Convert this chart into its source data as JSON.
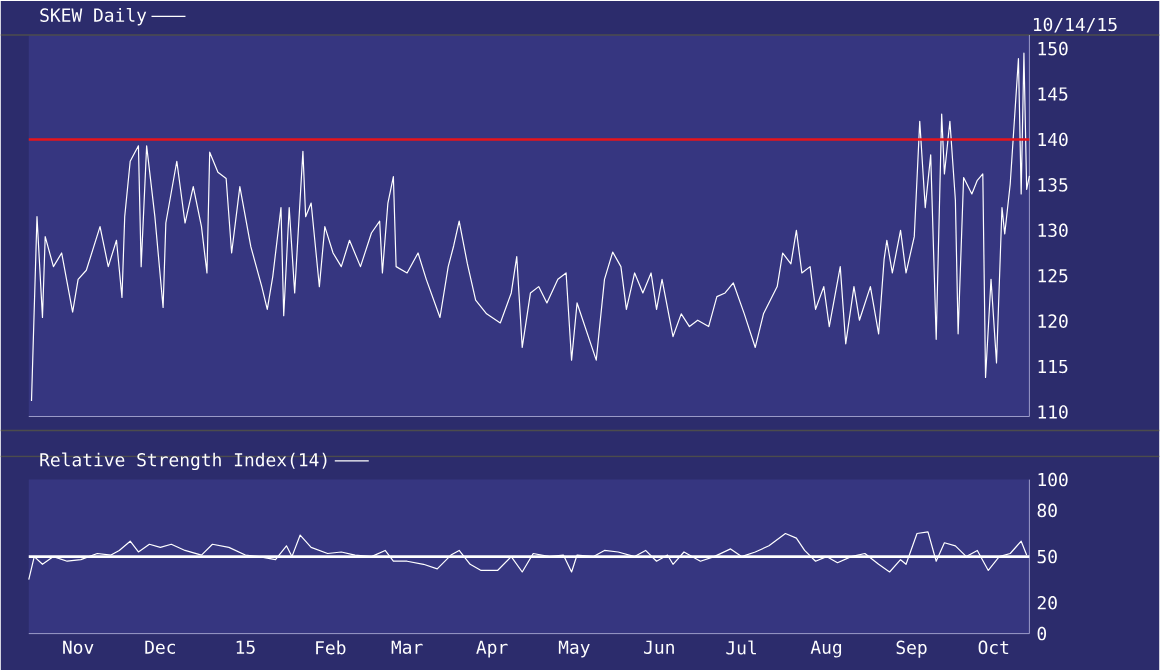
{
  "chart_data": [
    {
      "type": "line",
      "legend": "top left",
      "tick_labels": "y",
      "xlim": [
        "2014-10-14",
        "2015-10-14"
      ],
      "ylim": [
        109.5,
        151.5
      ],
      "yticks": [
        110,
        115,
        120,
        125,
        130,
        135,
        140,
        145,
        150
      ],
      "annotations": [
        "10/14/15"
      ],
      "ref_lines": [
        {
          "axis": "y",
          "value": 140,
          "label": null,
          "color": "#e8141a"
        }
      ],
      "series": [
        {
          "name": "SKEW Daily",
          "color": "#ffffff",
          "x": [
            "2014-10-15",
            "2014-10-17",
            "2014-10-19",
            "2014-10-20",
            "2014-10-23",
            "2014-10-26",
            "2014-10-30",
            "2014-11-01",
            "2014-11-04",
            "2014-11-09",
            "2014-11-12",
            "2014-11-15",
            "2014-11-17",
            "2014-11-18",
            "2014-11-20",
            "2014-11-23",
            "2014-11-24",
            "2014-11-26",
            "2014-11-29",
            "2014-12-02",
            "2014-12-03",
            "2014-12-07",
            "2014-12-10",
            "2014-12-13",
            "2014-12-16",
            "2014-12-18",
            "2014-12-19",
            "2014-12-22",
            "2014-12-25",
            "2014-12-27",
            "2014-12-30",
            "2015-01-03",
            "2015-01-07",
            "2015-01-09",
            "2015-01-11",
            "2015-01-14",
            "2015-01-15",
            "2015-01-17",
            "2015-01-19",
            "2015-01-22",
            "2015-01-23",
            "2015-01-25",
            "2015-01-28",
            "2015-01-30",
            "2015-02-02",
            "2015-02-05",
            "2015-02-08",
            "2015-02-12",
            "2015-02-16",
            "2015-02-19",
            "2015-02-20",
            "2015-02-22",
            "2015-02-24",
            "2015-02-25",
            "2015-03-01",
            "2015-03-05",
            "2015-03-08",
            "2015-03-13",
            "2015-03-16",
            "2015-03-18",
            "2015-03-20",
            "2015-03-23",
            "2015-03-26",
            "2015-03-30",
            "2015-04-04",
            "2015-04-08",
            "2015-04-10",
            "2015-04-12",
            "2015-04-15",
            "2015-04-18",
            "2015-04-21",
            "2015-04-25",
            "2015-04-28",
            "2015-04-30",
            "2015-05-02",
            "2015-05-09",
            "2015-05-12",
            "2015-05-15",
            "2015-05-18",
            "2015-05-20",
            "2015-05-23",
            "2015-05-26",
            "2015-05-29",
            "2015-05-31",
            "2015-06-02",
            "2015-06-06",
            "2015-06-09",
            "2015-06-12",
            "2015-06-15",
            "2015-06-19",
            "2015-06-22",
            "2015-06-25",
            "2015-06-28",
            "2015-07-02",
            "2015-07-06",
            "2015-07-09",
            "2015-07-14",
            "2015-07-16",
            "2015-07-19",
            "2015-07-21",
            "2015-07-23",
            "2015-07-26",
            "2015-07-28",
            "2015-07-31",
            "2015-08-02",
            "2015-08-06",
            "2015-08-08",
            "2015-08-11",
            "2015-08-13",
            "2015-08-17",
            "2015-08-20",
            "2015-08-22",
            "2015-08-23",
            "2015-08-25",
            "2015-08-28",
            "2015-08-30",
            "2015-09-02",
            "2015-09-04",
            "2015-09-06",
            "2015-09-08",
            "2015-09-10",
            "2015-09-12",
            "2015-09-13",
            "2015-09-15",
            "2015-09-17",
            "2015-09-18",
            "2015-09-20",
            "2015-09-23",
            "2015-09-25",
            "2015-09-27",
            "2015-09-28",
            "2015-09-30",
            "2015-10-02",
            "2015-10-04",
            "2015-10-05",
            "2015-10-07",
            "2015-10-10",
            "2015-10-11",
            "2015-10-12",
            "2015-10-13",
            "2015-10-14"
          ],
          "values": [
            111.2,
            131.5,
            120.4,
            129.3,
            126,
            127.5,
            121,
            124.6,
            125.6,
            130.4,
            126,
            128.9,
            122.6,
            131.5,
            137.6,
            139.3,
            126,
            139.3,
            131.5,
            121.5,
            130.8,
            137.6,
            130.8,
            134.8,
            130.4,
            125.3,
            138.6,
            136.4,
            135.7,
            127.5,
            134.8,
            128.2,
            123.8,
            121.3,
            124.9,
            132.5,
            120.6,
            132.5,
            123.1,
            138.7,
            131.5,
            133,
            123.8,
            130.4,
            127.5,
            126,
            128.9,
            126,
            129.7,
            131,
            125.3,
            133,
            135.9,
            126,
            125.3,
            127.5,
            124.6,
            120.4,
            126,
            128.3,
            131,
            126.3,
            122.3,
            120.8,
            119.8,
            123.1,
            127.1,
            117.1,
            123.1,
            123.8,
            122,
            124.6,
            125.3,
            115.7,
            122,
            115.7,
            124.6,
            127.6,
            126,
            121.3,
            125.3,
            123.1,
            125.3,
            121.3,
            124.6,
            118.3,
            120.8,
            119.4,
            120.1,
            119.4,
            122.7,
            123.1,
            124.2,
            120.8,
            117.1,
            120.8,
            123.8,
            127.5,
            126.3,
            130,
            125.3,
            126,
            121.3,
            123.8,
            119.4,
            126,
            117.5,
            123.8,
            120.1,
            123.8,
            118.6,
            126.8,
            128.9,
            125.3,
            130,
            125.3,
            129.3,
            142,
            132.5,
            138.3,
            118,
            142.8,
            136.2,
            142,
            133.3,
            118.6,
            135.8,
            134,
            135.5,
            136.2,
            113.8,
            124.6,
            115.4,
            132.5,
            129.6,
            135.1,
            148.9,
            134,
            149.5,
            134.5,
            136
          ]
        }
      ]
    },
    {
      "type": "line",
      "legend": "top left",
      "xlim": [
        "2014-10-14",
        "2015-10-14"
      ],
      "xticks": [
        {
          "value": "2014-11-01",
          "label": "Nov"
        },
        {
          "value": "2014-12-01",
          "label": "Dec"
        },
        {
          "value": "2015-01-01",
          "label": "15"
        },
        {
          "value": "2015-02-01",
          "label": "Feb"
        },
        {
          "value": "2015-03-01",
          "label": "Mar"
        },
        {
          "value": "2015-04-01",
          "label": "Apr"
        },
        {
          "value": "2015-05-01",
          "label": "May"
        },
        {
          "value": "2015-06-01",
          "label": "Jun"
        },
        {
          "value": "2015-07-01",
          "label": "Jul"
        },
        {
          "value": "2015-08-01",
          "label": "Aug"
        },
        {
          "value": "2015-09-01",
          "label": "Sep"
        },
        {
          "value": "2015-10-01",
          "label": "Oct"
        }
      ],
      "ylim": [
        0,
        100
      ],
      "yticks": [
        0,
        20,
        50,
        80,
        100
      ],
      "ref_lines": [
        {
          "axis": "y",
          "value": 50,
          "label": null,
          "color": "#ffffff"
        }
      ],
      "series": [
        {
          "name": "Relative Strength Index(14)",
          "color": "#ffffff",
          "x": [
            "2014-10-14",
            "2014-10-16",
            "2014-10-19",
            "2014-10-23",
            "2014-10-28",
            "2014-11-02",
            "2014-11-08",
            "2014-11-13",
            "2014-11-16",
            "2014-11-20",
            "2014-11-23",
            "2014-11-27",
            "2014-12-01",
            "2014-12-05",
            "2014-12-10",
            "2014-12-16",
            "2014-12-20",
            "2014-12-26",
            "2015-01-01",
            "2015-01-06",
            "2015-01-12",
            "2015-01-16",
            "2015-01-18",
            "2015-01-21",
            "2015-01-25",
            "2015-01-31",
            "2015-02-05",
            "2015-02-10",
            "2015-02-16",
            "2015-02-21",
            "2015-02-24",
            "2015-03-01",
            "2015-03-07",
            "2015-03-12",
            "2015-03-17",
            "2015-03-20",
            "2015-03-24",
            "2015-03-28",
            "2015-04-03",
            "2015-04-08",
            "2015-04-12",
            "2015-04-16",
            "2015-04-22",
            "2015-04-27",
            "2015-04-30",
            "2015-05-02",
            "2015-05-08",
            "2015-05-12",
            "2015-05-17",
            "2015-05-23",
            "2015-05-27",
            "2015-05-31",
            "2015-06-04",
            "2015-06-06",
            "2015-06-10",
            "2015-06-16",
            "2015-06-21",
            "2015-06-27",
            "2015-07-01",
            "2015-07-06",
            "2015-07-11",
            "2015-07-17",
            "2015-07-21",
            "2015-07-24",
            "2015-07-28",
            "2015-08-01",
            "2015-08-05",
            "2015-08-10",
            "2015-08-15",
            "2015-08-20",
            "2015-08-24",
            "2015-08-28",
            "2015-08-30",
            "2015-09-03",
            "2015-09-07",
            "2015-09-10",
            "2015-09-13",
            "2015-09-17",
            "2015-09-21",
            "2015-09-25",
            "2015-09-29",
            "2015-10-03",
            "2015-10-07",
            "2015-10-11",
            "2015-10-13"
          ],
          "values": [
            35,
            50,
            45,
            50,
            47,
            48,
            52,
            51,
            54,
            60,
            53,
            58,
            56,
            58,
            54,
            51,
            58,
            56,
            51,
            50,
            48,
            57,
            50,
            64,
            56,
            52,
            53,
            51,
            50,
            54,
            47,
            47,
            45,
            42,
            51,
            54,
            45,
            41,
            41,
            50,
            40,
            52,
            50,
            51,
            40,
            51,
            50,
            54,
            53,
            50,
            54,
            47,
            51,
            45,
            53,
            47,
            50,
            55,
            50,
            53,
            57,
            65,
            62,
            54,
            47,
            50,
            46,
            50,
            52,
            45,
            40,
            48,
            45,
            65,
            66,
            47,
            59,
            57,
            50,
            54,
            41,
            50,
            52,
            60,
            51
          ]
        }
      ]
    }
  ]
}
